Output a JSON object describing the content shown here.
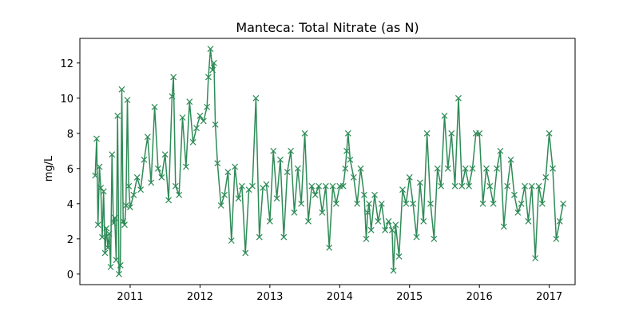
{
  "chart_data": {
    "type": "line",
    "title": "Manteca: Total Nitrate (as N)",
    "xlabel": "",
    "ylabel": "mg/L",
    "marker": "x",
    "series_color": "#2e8b57",
    "xlim": [
      2010.28,
      2017.37
    ],
    "ylim": [
      -0.6,
      13.4
    ],
    "xticks": [
      2011,
      2012,
      2013,
      2014,
      2015,
      2016,
      2017
    ],
    "xtick_labels": [
      "2011",
      "2012",
      "2013",
      "2014",
      "2015",
      "2016",
      "2017"
    ],
    "yticks": [
      0,
      2,
      4,
      6,
      8,
      10,
      12
    ],
    "ytick_labels": [
      "0",
      "2",
      "4",
      "6",
      "8",
      "10",
      "12"
    ],
    "series": [
      {
        "x": [
          2010.5,
          2010.52,
          2010.54,
          2010.56,
          2010.58,
          2010.6,
          2010.62,
          2010.64,
          2010.66,
          2010.68,
          2010.7,
          2010.72,
          2010.74,
          2010.76,
          2010.78,
          2010.8,
          2010.82,
          2010.84,
          2010.86,
          2010.88,
          2010.9,
          2010.92,
          2010.94,
          2010.96,
          2010.98,
          2011.0,
          2011.05,
          2011.1,
          2011.15,
          2011.2,
          2011.25,
          2011.3,
          2011.35,
          2011.4,
          2011.45,
          2011.5,
          2011.55,
          2011.6,
          2011.62,
          2011.65,
          2011.7,
          2011.75,
          2011.8,
          2011.85,
          2011.9,
          2011.95,
          2012.0,
          2012.05,
          2012.1,
          2012.12,
          2012.15,
          2012.18,
          2012.2,
          2012.22,
          2012.25,
          2012.3,
          2012.35,
          2012.4,
          2012.45,
          2012.5,
          2012.55,
          2012.6,
          2012.65,
          2012.7,
          2012.75,
          2012.8,
          2012.85,
          2012.9,
          2012.95,
          2013.0,
          2013.05,
          2013.1,
          2013.15,
          2013.2,
          2013.25,
          2013.3,
          2013.35,
          2013.4,
          2013.45,
          2013.5,
          2013.55,
          2013.6,
          2013.65,
          2013.7,
          2013.75,
          2013.8,
          2013.85,
          2013.9,
          2013.95,
          2014.0,
          2014.05,
          2014.08,
          2014.1,
          2014.12,
          2014.15,
          2014.2,
          2014.25,
          2014.3,
          2014.35,
          2014.38,
          2014.4,
          2014.42,
          2014.45,
          2014.5,
          2014.55,
          2014.6,
          2014.65,
          2014.7,
          2014.75,
          2014.77,
          2014.8,
          2014.85,
          2014.9,
          2014.95,
          2015.0,
          2015.05,
          2015.1,
          2015.15,
          2015.2,
          2015.25,
          2015.3,
          2015.35,
          2015.4,
          2015.45,
          2015.5,
          2015.55,
          2015.6,
          2015.65,
          2015.7,
          2015.75,
          2015.8,
          2015.85,
          2015.9,
          2015.95,
          2016.0,
          2016.05,
          2016.1,
          2016.15,
          2016.2,
          2016.25,
          2016.3,
          2016.35,
          2016.4,
          2016.45,
          2016.5,
          2016.55,
          2016.6,
          2016.65,
          2016.7,
          2016.75,
          2016.8,
          2016.85,
          2016.9,
          2016.95,
          2017.0,
          2017.05,
          2017.1,
          2017.15,
          2017.2
        ],
        "y": [
          5.6,
          7.7,
          2.8,
          6.1,
          4.9,
          2.1,
          4.7,
          1.2,
          2.6,
          1.5,
          2.3,
          0.4,
          6.8,
          2.9,
          3.2,
          0.8,
          9.0,
          0.0,
          0.5,
          10.5,
          3.0,
          2.8,
          3.9,
          9.9,
          5.0,
          3.8,
          4.5,
          5.5,
          4.8,
          6.5,
          7.8,
          5.2,
          9.5,
          6.0,
          5.5,
          6.8,
          4.2,
          10.1,
          11.2,
          5.0,
          4.5,
          8.9,
          6.1,
          9.8,
          7.5,
          8.3,
          9.0,
          8.7,
          9.5,
          11.2,
          12.8,
          11.6,
          12.0,
          8.5,
          6.3,
          3.9,
          4.5,
          5.8,
          1.9,
          6.1,
          4.3,
          5.0,
          1.2,
          4.8,
          5.0,
          10.0,
          2.1,
          4.9,
          5.1,
          3.0,
          7.0,
          4.3,
          6.5,
          2.1,
          5.8,
          7.0,
          3.5,
          6.0,
          4.0,
          8.0,
          3.0,
          5.0,
          4.5,
          5.0,
          3.5,
          5.0,
          1.5,
          5.0,
          4.0,
          5.0,
          5.0,
          6.0,
          7.0,
          8.0,
          6.5,
          5.5,
          4.0,
          6.0,
          4.5,
          2.0,
          3.5,
          4.0,
          2.5,
          4.5,
          3.0,
          4.0,
          2.5,
          3.0,
          2.5,
          0.2,
          2.8,
          1.0,
          4.8,
          4.0,
          5.5,
          4.0,
          2.1,
          5.2,
          3.0,
          8.0,
          4.0,
          2.0,
          6.0,
          5.0,
          9.0,
          6.0,
          8.0,
          5.0,
          10.0,
          5.0,
          6.0,
          5.0,
          6.0,
          8.0,
          8.0,
          4.0,
          6.0,
          5.0,
          4.0,
          6.0,
          7.0,
          2.7,
          5.0,
          6.5,
          4.5,
          3.5,
          4.0,
          5.0,
          3.0,
          5.0,
          0.9,
          5.0,
          4.0,
          5.5,
          8.0,
          6.0,
          2.0,
          3.0,
          4.0
        ]
      }
    ]
  }
}
